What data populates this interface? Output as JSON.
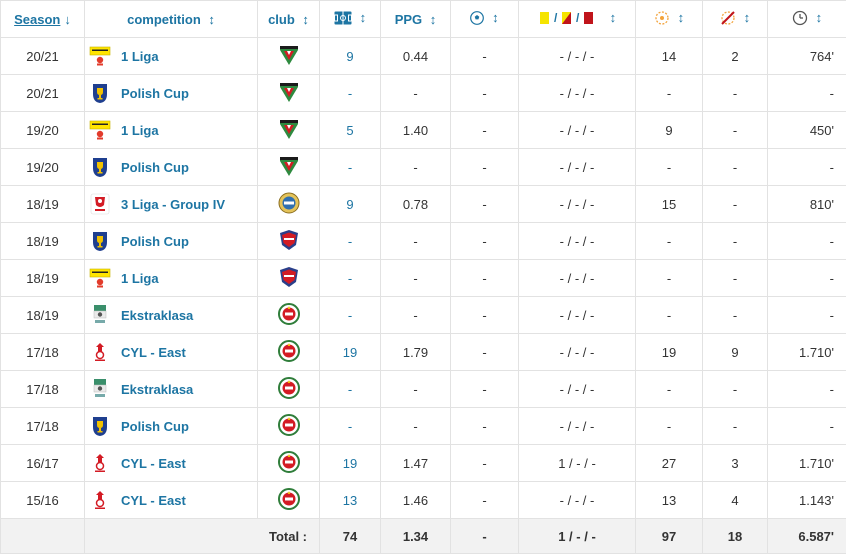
{
  "header": {
    "season": "Season",
    "competition": "competition",
    "club": "club",
    "ppg": "PPG",
    "sort_arrow": "↕",
    "sort_down": "↓"
  },
  "rows": [
    {
      "season": "20/21",
      "comp": "1 Liga",
      "comp_logo": "1liga",
      "club": "tychy",
      "apps": "9",
      "ppg": "0.44",
      "goals": "-",
      "cards": "- / - / -",
      "subs_on": "14",
      "subs_off": "2",
      "minutes": "764'"
    },
    {
      "season": "20/21",
      "comp": "Polish Cup",
      "comp_logo": "cup",
      "club": "tychy",
      "apps": "-",
      "ppg": "-",
      "goals": "-",
      "cards": "- / - / -",
      "subs_on": "-",
      "subs_off": "-",
      "minutes": "-"
    },
    {
      "season": "19/20",
      "comp": "1 Liga",
      "comp_logo": "1liga",
      "club": "tychy",
      "apps": "5",
      "ppg": "1.40",
      "goals": "-",
      "cards": "- / - / -",
      "subs_on": "9",
      "subs_off": "-",
      "minutes": "450'"
    },
    {
      "season": "19/20",
      "comp": "Polish Cup",
      "comp_logo": "cup",
      "club": "tychy",
      "apps": "-",
      "ppg": "-",
      "goals": "-",
      "cards": "- / - / -",
      "subs_on": "-",
      "subs_off": "-",
      "minutes": "-"
    },
    {
      "season": "18/19",
      "comp": "3 Liga - Group IV",
      "comp_logo": "3liga",
      "club": "round-gold",
      "apps": "9",
      "ppg": "0.78",
      "goals": "-",
      "cards": "- / - / -",
      "subs_on": "15",
      "subs_off": "-",
      "minutes": "810'"
    },
    {
      "season": "18/19",
      "comp": "Polish Cup",
      "comp_logo": "cup",
      "club": "shield-red",
      "apps": "-",
      "ppg": "-",
      "goals": "-",
      "cards": "- / - / -",
      "subs_on": "-",
      "subs_off": "-",
      "minutes": "-"
    },
    {
      "season": "18/19",
      "comp": "1 Liga",
      "comp_logo": "1liga",
      "club": "shield-red",
      "apps": "-",
      "ppg": "-",
      "goals": "-",
      "cards": "- / - / -",
      "subs_on": "-",
      "subs_off": "-",
      "minutes": "-"
    },
    {
      "season": "18/19",
      "comp": "Ekstraklasa",
      "comp_logo": "ekstra",
      "club": "wisla",
      "apps": "-",
      "ppg": "-",
      "goals": "-",
      "cards": "- / - / -",
      "subs_on": "-",
      "subs_off": "-",
      "minutes": "-"
    },
    {
      "season": "17/18",
      "comp": "CYL - East",
      "comp_logo": "cyl",
      "club": "wisla",
      "apps": "19",
      "ppg": "1.79",
      "goals": "-",
      "cards": "- / - / -",
      "subs_on": "19",
      "subs_off": "9",
      "minutes": "1.710'"
    },
    {
      "season": "17/18",
      "comp": "Ekstraklasa",
      "comp_logo": "ekstra",
      "club": "wisla",
      "apps": "-",
      "ppg": "-",
      "goals": "-",
      "cards": "- / - / -",
      "subs_on": "-",
      "subs_off": "-",
      "minutes": "-"
    },
    {
      "season": "17/18",
      "comp": "Polish Cup",
      "comp_logo": "cup",
      "club": "wisla",
      "apps": "-",
      "ppg": "-",
      "goals": "-",
      "cards": "- / - / -",
      "subs_on": "-",
      "subs_off": "-",
      "minutes": "-"
    },
    {
      "season": "16/17",
      "comp": "CYL - East",
      "comp_logo": "cyl",
      "club": "wisla",
      "apps": "19",
      "ppg": "1.47",
      "goals": "-",
      "cards": "1 / - / -",
      "subs_on": "27",
      "subs_off": "3",
      "minutes": "1.710'"
    },
    {
      "season": "15/16",
      "comp": "CYL - East",
      "comp_logo": "cyl",
      "club": "wisla",
      "apps": "13",
      "ppg": "1.46",
      "goals": "-",
      "cards": "- / - / -",
      "subs_on": "13",
      "subs_off": "4",
      "minutes": "1.143'"
    }
  ],
  "totals": {
    "label": "Total :",
    "apps": "74",
    "ppg": "1.34",
    "goals": "-",
    "cards": "1 / - / -",
    "subs_on": "97",
    "subs_off": "18",
    "minutes": "6.587'"
  },
  "colors": {
    "link": "#1d75a3",
    "border": "#e2e2e2",
    "total_bg": "#f2f2f2",
    "yellow_card": "#f5e400",
    "red_card": "#c0141b"
  },
  "icons": {
    "apps": "pitch-icon",
    "goals": "football-icon",
    "cards": "cards-icon",
    "subs_on": "sub-on-icon",
    "subs_off": "sub-off-icon",
    "minutes": "clock-icon"
  }
}
